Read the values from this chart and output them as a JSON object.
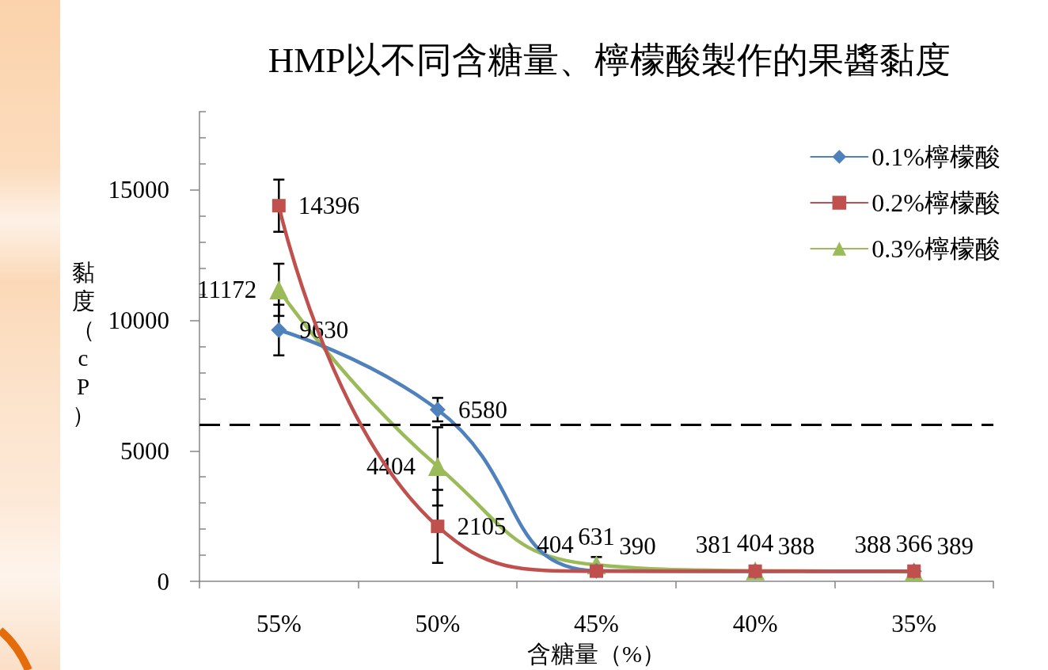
{
  "chart_data": {
    "type": "line",
    "title": "HMP以不同含糖量、檸檬酸製作的果醬黏度",
    "xlabel": "含糖量（%）",
    "ylabel": "黏度（cP）",
    "categories": [
      "55%",
      "50%",
      "45%",
      "40%",
      "35%"
    ],
    "series": [
      {
        "name": "0.1%檸檬酸",
        "color": "#4f81bd",
        "marker": "diamond",
        "values": [
          9630,
          6580,
          404,
          381,
          388
        ],
        "errors": [
          970,
          450,
          null,
          null,
          null
        ]
      },
      {
        "name": "0.2%檸檬酸",
        "color": "#c0504d",
        "marker": "square",
        "values": [
          14396,
          2105,
          390,
          388,
          389
        ],
        "errors": [
          1000,
          1400,
          null,
          null,
          null
        ]
      },
      {
        "name": "0.3%檸檬酸",
        "color": "#9bbb59",
        "marker": "triangle",
        "values": [
          11172,
          4404,
          631,
          404,
          366
        ],
        "errors": [
          1000,
          1500,
          300,
          null,
          null
        ]
      }
    ],
    "ylim": [
      0,
      18000
    ],
    "yticks": [
      0,
      {
        "value": 1000,
        "label": null
      },
      {
        "value": 2000,
        "label": null
      },
      {
        "value": 3000,
        "label": null
      },
      {
        "value": 4000,
        "label": null
      },
      5000,
      {
        "value": 6000,
        "label": null
      },
      {
        "value": 7000,
        "label": null
      },
      {
        "value": 8000,
        "label": null
      },
      {
        "value": 9000,
        "label": null
      },
      10000,
      {
        "value": 11000,
        "label": null
      },
      {
        "value": 12000,
        "label": null
      },
      {
        "value": 13000,
        "label": null
      },
      {
        "value": 14000,
        "label": null
      },
      15000,
      {
        "value": 16000,
        "label": null
      },
      {
        "value": 17000,
        "label": null
      },
      {
        "value": 18000,
        "label": null
      }
    ],
    "ref_lines": [
      {
        "axis": "y",
        "value": 6000,
        "color": "#000000",
        "line_style": "dashed"
      }
    ],
    "data_labels": true,
    "legend": "top right"
  }
}
